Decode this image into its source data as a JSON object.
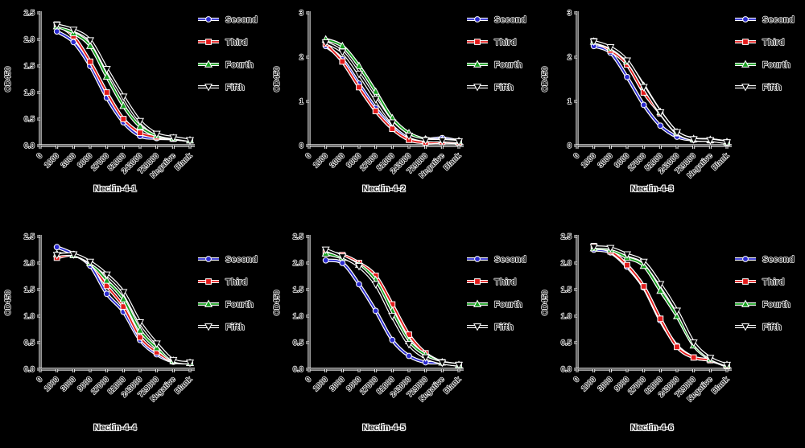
{
  "page": {
    "background": "#000000",
    "description_colors": {
      "second": "#2b2bd0",
      "third": "#e31b1b",
      "fourth": "#16a11f",
      "fifth": "#000000",
      "halo": "#ffffff"
    }
  },
  "axis": {
    "origin_label": "0"
  },
  "chart_data": [
    {
      "type": "line",
      "title": "Nectin-4-1",
      "ylabel": "OD450",
      "ylim": [
        0,
        2.5
      ],
      "yticks": [
        "0.0",
        "0.5",
        "1.0",
        "1.5",
        "2.0",
        "2.5"
      ],
      "categories": [
        "1000",
        "3000",
        "9000",
        "27000",
        "81000",
        "243000",
        "729000",
        "Negative",
        "Blank"
      ],
      "grid": false,
      "legend_position": "right",
      "series": [
        {
          "name": "Second",
          "color": "#2b2bd0",
          "marker": "circle",
          "values": [
            2.15,
            1.95,
            1.5,
            0.9,
            0.44,
            0.18,
            0.14,
            0.13,
            0.1
          ]
        },
        {
          "name": "Third",
          "color": "#e31b1b",
          "marker": "square",
          "values": [
            2.28,
            2.06,
            1.58,
            1.0,
            0.5,
            0.24,
            0.16,
            0.13,
            0.1
          ]
        },
        {
          "name": "Fourth",
          "color": "#16a11f",
          "marker": "triangle-up",
          "values": [
            2.25,
            2.12,
            1.88,
            1.3,
            0.75,
            0.36,
            0.19,
            0.14,
            0.1
          ]
        },
        {
          "name": "Fifth",
          "color": "#000000",
          "marker": "triangle-down",
          "values": [
            2.27,
            2.18,
            1.98,
            1.44,
            0.92,
            0.46,
            0.22,
            0.15,
            0.1
          ]
        }
      ]
    },
    {
      "type": "line",
      "title": "Nectin-4-2",
      "ylabel": "OD450",
      "ylim": [
        0,
        3
      ],
      "yticks": [
        "0",
        "1",
        "2",
        "3"
      ],
      "categories": [
        "1000",
        "3000",
        "9000",
        "27000",
        "81000",
        "243000",
        "729000",
        "Negative",
        "Blank"
      ],
      "grid": false,
      "legend_position": "right",
      "series": [
        {
          "name": "Second",
          "color": "#2b2bd0",
          "marker": "circle",
          "values": [
            2.25,
            1.95,
            1.4,
            0.85,
            0.42,
            0.2,
            0.14,
            0.17,
            0.1
          ]
        },
        {
          "name": "Third",
          "color": "#e31b1b",
          "marker": "square",
          "values": [
            2.3,
            1.9,
            1.32,
            0.78,
            0.38,
            0.13,
            0.07,
            0.08,
            0.07
          ]
        },
        {
          "name": "Fourth",
          "color": "#16a11f",
          "marker": "triangle-up",
          "values": [
            2.4,
            2.25,
            1.8,
            1.22,
            0.62,
            0.28,
            0.14,
            0.13,
            0.1
          ]
        },
        {
          "name": "Fifth",
          "color": "#000000",
          "marker": "triangle-down",
          "values": [
            2.33,
            2.12,
            1.62,
            1.05,
            0.52,
            0.22,
            0.12,
            0.11,
            0.09
          ]
        }
      ]
    },
    {
      "type": "line",
      "title": "Nectin-4-3",
      "ylabel": "OD450",
      "ylim": [
        0,
        3
      ],
      "yticks": [
        "0",
        "1",
        "2",
        "3"
      ],
      "categories": [
        "1000",
        "3000",
        "9000",
        "27000",
        "81000",
        "243000",
        "729000",
        "Negative",
        "Blank"
      ],
      "grid": false,
      "legend_position": "right",
      "series": [
        {
          "name": "Second",
          "color": "#2b2bd0",
          "marker": "circle",
          "values": [
            2.25,
            2.1,
            1.55,
            0.92,
            0.45,
            0.2,
            0.13,
            0.13,
            0.07
          ]
        },
        {
          "name": "Third",
          "color": "#e31b1b",
          "marker": "square",
          "values": [
            2.36,
            2.15,
            1.83,
            1.2,
            0.73,
            0.28,
            0.14,
            0.12,
            0.07
          ]
        },
        {
          "name": "Fourth",
          "color": "#16a11f",
          "marker": "triangle-up",
          "values": [
            2.35,
            2.2,
            1.9,
            1.35,
            0.76,
            0.3,
            0.15,
            0.13,
            0.08
          ]
        },
        {
          "name": "Fifth",
          "color": "#000000",
          "marker": "triangle-down",
          "values": [
            2.35,
            2.22,
            1.92,
            1.32,
            0.75,
            0.3,
            0.14,
            0.12,
            0.07
          ]
        }
      ]
    },
    {
      "type": "line",
      "title": "Nectin-4-4",
      "ylabel": "OD450",
      "ylim": [
        0,
        2.5
      ],
      "yticks": [
        "0.0",
        "0.5",
        "1.0",
        "1.5",
        "2.0",
        "2.5"
      ],
      "categories": [
        "1000",
        "3000",
        "9000",
        "27000",
        "81000",
        "243000",
        "729000",
        "Negative",
        "Blank"
      ],
      "grid": false,
      "legend_position": "right",
      "series": [
        {
          "name": "Second",
          "color": "#2b2bd0",
          "marker": "circle",
          "values": [
            2.3,
            2.17,
            1.95,
            1.42,
            1.08,
            0.55,
            0.28,
            0.14,
            0.12
          ]
        },
        {
          "name": "Third",
          "color": "#e31b1b",
          "marker": "square",
          "values": [
            2.1,
            2.15,
            2.0,
            1.57,
            1.18,
            0.6,
            0.32,
            0.15,
            0.12
          ]
        },
        {
          "name": "Fourth",
          "color": "#16a11f",
          "marker": "triangle-up",
          "values": [
            2.17,
            2.15,
            2.0,
            1.67,
            1.32,
            0.73,
            0.4,
            0.16,
            0.12
          ]
        },
        {
          "name": "Fifth",
          "color": "#000000",
          "marker": "triangle-down",
          "values": [
            2.15,
            2.16,
            2.02,
            1.78,
            1.45,
            0.88,
            0.48,
            0.17,
            0.12
          ]
        }
      ]
    },
    {
      "type": "line",
      "title": "Nectin-4-5",
      "ylabel": "OD450",
      "ylim": [
        0,
        2.5
      ],
      "yticks": [
        "0.0",
        "0.5",
        "1.0",
        "1.5",
        "2.0",
        "2.5"
      ],
      "categories": [
        "1000",
        "3000",
        "9000",
        "27000",
        "81000",
        "243000",
        "729000",
        "Negative",
        "Blank"
      ],
      "grid": false,
      "legend_position": "right",
      "series": [
        {
          "name": "Second",
          "color": "#2b2bd0",
          "marker": "circle",
          "values": [
            2.05,
            2.0,
            1.6,
            1.1,
            0.55,
            0.25,
            0.13,
            0.12,
            0.08
          ]
        },
        {
          "name": "Third",
          "color": "#e31b1b",
          "marker": "square",
          "values": [
            2.2,
            2.15,
            2.0,
            1.76,
            1.22,
            0.65,
            0.3,
            0.13,
            0.08
          ]
        },
        {
          "name": "Fourth",
          "color": "#16a11f",
          "marker": "triangle-up",
          "values": [
            2.18,
            2.1,
            1.97,
            1.68,
            1.1,
            0.53,
            0.27,
            0.13,
            0.08
          ]
        },
        {
          "name": "Fifth",
          "color": "#000000",
          "marker": "triangle-down",
          "values": [
            2.25,
            2.12,
            1.94,
            1.6,
            1.0,
            0.47,
            0.22,
            0.12,
            0.08
          ]
        }
      ]
    },
    {
      "type": "line",
      "title": "Nectin-4-6",
      "ylabel": "OD450",
      "ylim": [
        0,
        2.5
      ],
      "yticks": [
        "0.0",
        "0.5",
        "1.0",
        "1.5",
        "2.0",
        "2.5"
      ],
      "categories": [
        "1000",
        "3000",
        "9000",
        "27000",
        "81000",
        "243000",
        "729000",
        "Negative",
        "Blank"
      ],
      "grid": false,
      "legend_position": "right",
      "series": [
        {
          "name": "Second",
          "color": "#2b2bd0",
          "marker": "circle",
          "values": [
            2.25,
            2.2,
            1.93,
            1.54,
            0.92,
            0.44,
            0.22,
            0.17,
            0.06
          ]
        },
        {
          "name": "Third",
          "color": "#e31b1b",
          "marker": "square",
          "values": [
            2.32,
            2.22,
            1.96,
            1.56,
            0.95,
            0.42,
            0.22,
            0.17,
            0.06
          ]
        },
        {
          "name": "Fourth",
          "color": "#16a11f",
          "marker": "triangle-up",
          "values": [
            2.28,
            2.25,
            2.1,
            1.95,
            1.48,
            1.0,
            0.45,
            0.19,
            0.08
          ]
        },
        {
          "name": "Fifth",
          "color": "#000000",
          "marker": "triangle-down",
          "values": [
            2.3,
            2.28,
            2.16,
            2.02,
            1.6,
            1.1,
            0.5,
            0.21,
            0.08
          ]
        }
      ]
    }
  ]
}
